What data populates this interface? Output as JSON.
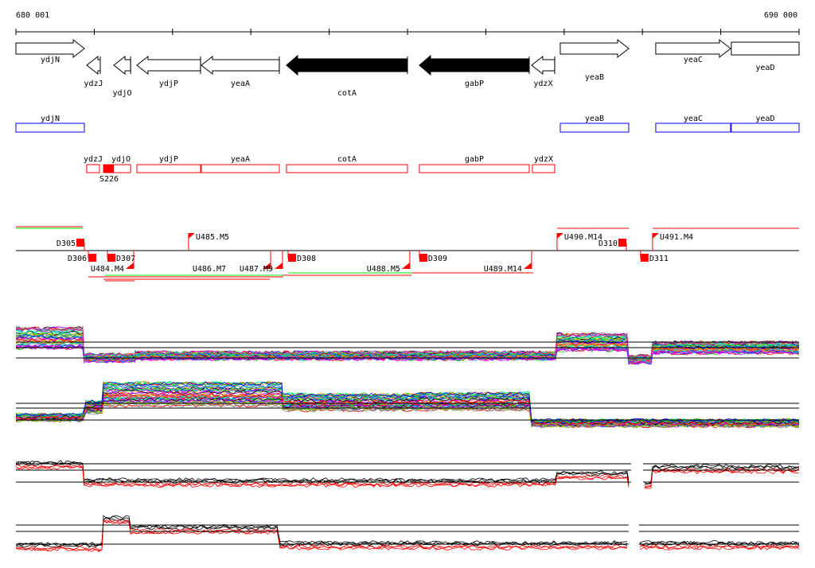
{
  "axis": {
    "start_label": "680 001",
    "end_label": "690 000",
    "start": 680001,
    "end": 690000
  },
  "genes": [
    {
      "name": "ydjN",
      "start": 680001,
      "end": 680875,
      "strand": "+",
      "filled": false,
      "row": 0
    },
    {
      "name": "ydzJ",
      "start": 680905,
      "end": 681078,
      "strand": "-",
      "filled": false,
      "row": 1
    },
    {
      "name": "ydjO",
      "start": 681251,
      "end": 681465,
      "strand": "-",
      "filled": false,
      "row": 2
    },
    {
      "name": "ydjP",
      "start": 681545,
      "end": 682358,
      "strand": "-",
      "filled": false,
      "row": 1
    },
    {
      "name": "yeaA",
      "start": 682368,
      "end": 683364,
      "strand": "-",
      "filled": false,
      "row": 1
    },
    {
      "name": "cotA",
      "start": 683455,
      "end": 685000,
      "strand": "-",
      "filled": true,
      "row": 2
    },
    {
      "name": "gabP",
      "start": 685152,
      "end": 686555,
      "strand": "-",
      "filled": true,
      "row": 1
    },
    {
      "name": "ydzX",
      "start": 686585,
      "end": 686880,
      "strand": "-",
      "filled": false,
      "row": 1
    },
    {
      "name": "yeaB",
      "start": 686951,
      "end": 687825,
      "strand": "+",
      "filled": false,
      "row": 3
    },
    {
      "name": "yeaC",
      "start": 688170,
      "end": 689125,
      "strand": "+",
      "filled": false,
      "row": 0
    },
    {
      "name": "yeaD",
      "start": 689135,
      "end": 690000,
      "strand": "+",
      "filled": false,
      "row": 4
    }
  ],
  "blue_boxes": [
    {
      "name": "ydjN",
      "start": 680001,
      "end": 680875
    },
    {
      "name": "yeaB",
      "start": 686951,
      "end": 687825
    },
    {
      "name": "yeaC",
      "start": 688170,
      "end": 689125
    },
    {
      "name": "yeaD",
      "start": 689135,
      "end": 690000
    }
  ],
  "red_boxes": [
    {
      "name": "ydzJ",
      "start": 680905,
      "end": 681068
    },
    {
      "name": "ydjO",
      "start": 681119,
      "end": 681465,
      "fill_end": 681251
    },
    {
      "name": "ydjP",
      "start": 681545,
      "end": 682358
    },
    {
      "name": "yeaA",
      "start": 682368,
      "end": 683364
    },
    {
      "name": "cotA",
      "start": 683455,
      "end": 685000
    },
    {
      "name": "gabP",
      "start": 685152,
      "end": 686555
    },
    {
      "name": "ydzX",
      "start": 686595,
      "end": 686880
    }
  ],
  "site_label": {
    "text": "S226",
    "pos": 681190
  },
  "markers_above": [
    {
      "label": "D305",
      "pos": 680875,
      "type": "box"
    },
    {
      "label": "U485.M5",
      "pos": 682205,
      "type": "flag"
    },
    {
      "label": "U490.M14",
      "pos": 686910,
      "type": "flag"
    },
    {
      "label": "D310",
      "pos": 687794,
      "type": "box"
    },
    {
      "label": "U491.M4",
      "pos": 688129,
      "type": "flag"
    }
  ],
  "markers_below": [
    {
      "label": "D306",
      "pos": 680926,
      "type": "box"
    },
    {
      "label": "D307",
      "pos": 681170,
      "type": "box"
    },
    {
      "label": "U484.M4",
      "pos": 681505,
      "type": "tri"
    },
    {
      "label": "U486.M7",
      "pos": 683253,
      "type": "tri"
    },
    {
      "label": "U487.M9",
      "pos": 683405,
      "type": "tri"
    },
    {
      "label": "D308",
      "pos": 683476,
      "type": "box"
    },
    {
      "label": "U488.M5",
      "pos": 685030,
      "type": "tri"
    },
    {
      "label": "D309",
      "pos": 685152,
      "type": "box"
    },
    {
      "label": "U489.M14",
      "pos": 686585,
      "type": "tri"
    },
    {
      "label": "D311",
      "pos": 687976,
      "type": "box"
    }
  ],
  "colors": {
    "red": "#ff0000",
    "green": "#00ee00",
    "blue": "#0000ff",
    "black": "#000000"
  },
  "panels": [
    {
      "refs": [
        1,
        0.65,
        0
      ],
      "traces": 40,
      "multicolor": true,
      "gaps": [],
      "segments": [
        [
          680001,
          680870,
          1.25
        ],
        [
          680870,
          681525,
          0
        ],
        [
          681525,
          686910,
          0.15
        ],
        [
          686910,
          687824,
          1
        ],
        [
          687824,
          688129,
          -0.1
        ],
        [
          688129,
          690000,
          0.65
        ]
      ]
    },
    {
      "refs": [
        1.05,
        0.75,
        0
      ],
      "traces": 45,
      "multicolor": true,
      "gaps": [],
      "segments": [
        [
          680001,
          680895,
          0.15
        ],
        [
          680895,
          681119,
          0.8
        ],
        [
          681119,
          683405,
          1.6
        ],
        [
          683405,
          685132,
          1.1
        ],
        [
          685132,
          686585,
          1.15
        ],
        [
          686585,
          690000,
          -0.2
        ]
      ]
    },
    {
      "refs": [
        1.15,
        0.75,
        0
      ],
      "traces": 6,
      "multicolor": false,
      "gaps": [
        [
          687855,
          688007
        ]
      ],
      "segments": [
        [
          680001,
          680870,
          1.15
        ],
        [
          680870,
          686910,
          0.05
        ],
        [
          686910,
          687824,
          0.5
        ],
        [
          687824,
          688129,
          -0.1
        ],
        [
          688129,
          690000,
          0.9
        ]
      ]
    },
    {
      "refs": [
        1.2,
        0.8,
        0
      ],
      "traces": 6,
      "multicolor": false,
      "gaps": [
        [
          687824,
          687956
        ]
      ],
      "segments": [
        [
          680001,
          681119,
          -0.1
        ],
        [
          681119,
          681465,
          1.6
        ],
        [
          681465,
          683374,
          1.0
        ],
        [
          683374,
          690000,
          0
        ]
      ]
    }
  ]
}
